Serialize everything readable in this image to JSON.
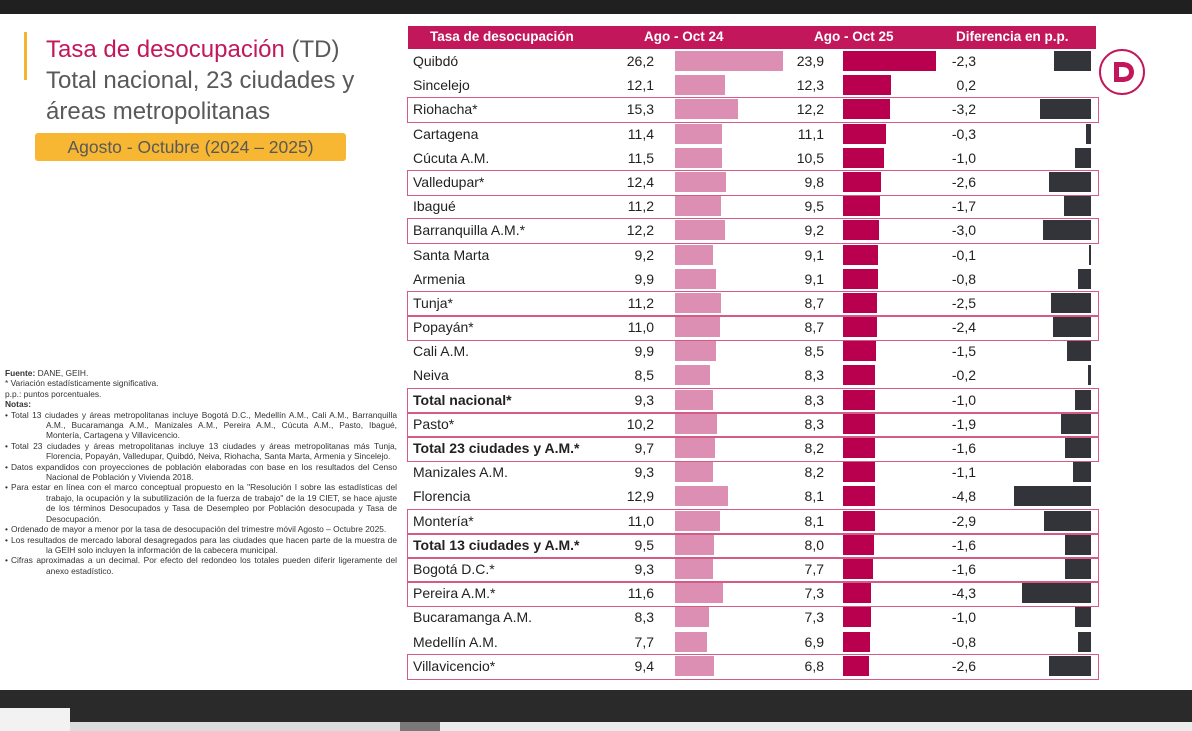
{
  "title": {
    "line1_colored": "Tasa de desocupación",
    "line1_rest": " (TD)",
    "line2": "Total nacional, 23 ciudades y",
    "line3": "áreas metropolitanas"
  },
  "period": "Agosto - Octubre (2024 – 2025)",
  "notes": {
    "fuente_label": "Fuente:",
    "fuente_text": " DANE, GEIH.",
    "asterisk": "* Variación estadísticamente significativa.",
    "pp": "p.p.: puntos porcentuales.",
    "notas_label": "Notas",
    "notas_colon": ":",
    "bullet": "•",
    "items": [
      "Total 13 ciudades y áreas metropolitanas incluye Bogotá D.C., Medellín A.M., Cali A.M., Barranquilla A.M., Bucaramanga A.M., Manizales A.M., Pereira A.M., Cúcuta A.M., Pasto, Ibagué, Montería, Cartagena y Villavicencio.",
      "Total 23 ciudades y áreas metropolitanas incluye 13 ciudades y áreas metropolitanas más Tunja, Florencia, Popayán, Valledupar, Quibdó, Neiva, Riohacha, Santa Marta, Armenia y Sincelejo.",
      "Datos expandidos con proyecciones de población elaboradas con base en los resultados del Censo Nacional de Población y Vivienda 2018.",
      "Para estar en línea con el marco conceptual propuesto en la \"Resolución I sobre las estadísticas del trabajo, la ocupación y la subutilización de la fuerza de trabajo\" de la 19 CIET, se hace ajuste de los términos Desocupados y Tasa de Desempleo por Población desocupada y Tasa de Desocupación.",
      "Ordenado de mayor a menor por la tasa de desocupación del trimestre móvil Agosto – Octubre 2025.",
      "Los resultados de mercado laboral desagregados para las ciudades que hacen parte de la muestra de la GEIH solo incluyen la información de la cabecera municipal.",
      "Cifras aproximadas a un decimal. Por efecto del redondeo los totales pueden diferir ligeramente del anexo estadístico."
    ]
  },
  "colors": {
    "accent": "#c2185b",
    "bar_2024": "#dc8fb2",
    "bar_2025": "#b8004f",
    "bar_diff": "#33333a",
    "highlight_border": "#d45b86",
    "period_bg": "#f7b733"
  },
  "logo_icon": "dane-logo-icon",
  "chart_data": {
    "type": "table",
    "title": "Tasa de desocupación (TD) Total nacional, 23 ciudades y áreas metropolitanas",
    "columns": [
      "Tasa de desocupación",
      "Ago - Oct 24",
      "Ago - Oct 25",
      "Diferencia en p.p."
    ],
    "bar_scale_max": 26.2,
    "diff_scale_max": 4.8,
    "rows": [
      {
        "name": "Quibdó",
        "v24": "26,2",
        "n24": 26.2,
        "v25": "23,9",
        "n25": 23.9,
        "diff": "-2,3",
        "nd": -2.3,
        "hl": false,
        "bold": false
      },
      {
        "name": "Sincelejo",
        "v24": "12,1",
        "n24": 12.1,
        "v25": "12,3",
        "n25": 12.3,
        "diff": "0,2",
        "nd": 0.2,
        "hl": false,
        "bold": false
      },
      {
        "name": "Riohacha*",
        "v24": "15,3",
        "n24": 15.3,
        "v25": "12,2",
        "n25": 12.2,
        "diff": "-3,2",
        "nd": -3.2,
        "hl": true,
        "bold": false
      },
      {
        "name": "Cartagena",
        "v24": "11,4",
        "n24": 11.4,
        "v25": "11,1",
        "n25": 11.1,
        "diff": "-0,3",
        "nd": -0.3,
        "hl": false,
        "bold": false
      },
      {
        "name": "Cúcuta A.M.",
        "v24": "11,5",
        "n24": 11.5,
        "v25": "10,5",
        "n25": 10.5,
        "diff": "-1,0",
        "nd": -1.0,
        "hl": false,
        "bold": false
      },
      {
        "name": "Valledupar*",
        "v24": "12,4",
        "n24": 12.4,
        "v25": "9,8",
        "n25": 9.8,
        "diff": "-2,6",
        "nd": -2.6,
        "hl": true,
        "bold": false
      },
      {
        "name": "Ibagué",
        "v24": "11,2",
        "n24": 11.2,
        "v25": "9,5",
        "n25": 9.5,
        "diff": "-1,7",
        "nd": -1.7,
        "hl": false,
        "bold": false
      },
      {
        "name": "Barranquilla A.M.*",
        "v24": "12,2",
        "n24": 12.2,
        "v25": "9,2",
        "n25": 9.2,
        "diff": "-3,0",
        "nd": -3.0,
        "hl": true,
        "bold": false
      },
      {
        "name": "Santa Marta",
        "v24": "9,2",
        "n24": 9.2,
        "v25": "9,1",
        "n25": 9.1,
        "diff": "-0,1",
        "nd": -0.1,
        "hl": false,
        "bold": false
      },
      {
        "name": "Armenia",
        "v24": "9,9",
        "n24": 9.9,
        "v25": "9,1",
        "n25": 9.1,
        "diff": "-0,8",
        "nd": -0.8,
        "hl": false,
        "bold": false
      },
      {
        "name": "Tunja*",
        "v24": "11,2",
        "n24": 11.2,
        "v25": "8,7",
        "n25": 8.7,
        "diff": "-2,5",
        "nd": -2.5,
        "hl": true,
        "bold": false
      },
      {
        "name": "Popayán*",
        "v24": "11,0",
        "n24": 11.0,
        "v25": "8,7",
        "n25": 8.7,
        "diff": "-2,4",
        "nd": -2.4,
        "hl": true,
        "bold": false
      },
      {
        "name": "Cali A.M.",
        "v24": "9,9",
        "n24": 9.9,
        "v25": "8,5",
        "n25": 8.5,
        "diff": "-1,5",
        "nd": -1.5,
        "hl": false,
        "bold": false
      },
      {
        "name": "Neiva",
        "v24": "8,5",
        "n24": 8.5,
        "v25": "8,3",
        "n25": 8.3,
        "diff": "-0,2",
        "nd": -0.2,
        "hl": false,
        "bold": false
      },
      {
        "name": "Total nacional*",
        "v24": "9,3",
        "n24": 9.3,
        "v25": "8,3",
        "n25": 8.3,
        "diff": "-1,0",
        "nd": -1.0,
        "hl": true,
        "bold": true
      },
      {
        "name": "Pasto*",
        "v24": "10,2",
        "n24": 10.2,
        "v25": "8,3",
        "n25": 8.3,
        "diff": "-1,9",
        "nd": -1.9,
        "hl": true,
        "bold": false
      },
      {
        "name": "Total 23 ciudades y A.M.*",
        "v24": "9,7",
        "n24": 9.7,
        "v25": "8,2",
        "n25": 8.2,
        "diff": "-1,6",
        "nd": -1.6,
        "hl": true,
        "bold": true
      },
      {
        "name": "Manizales A.M.",
        "v24": "9,3",
        "n24": 9.3,
        "v25": "8,2",
        "n25": 8.2,
        "diff": "-1,1",
        "nd": -1.1,
        "hl": false,
        "bold": false
      },
      {
        "name": "Florencia",
        "v24": "12,9",
        "n24": 12.9,
        "v25": "8,1",
        "n25": 8.1,
        "diff": "-4,8",
        "nd": -4.8,
        "hl": false,
        "bold": false
      },
      {
        "name": "Montería*",
        "v24": "11,0",
        "n24": 11.0,
        "v25": "8,1",
        "n25": 8.1,
        "diff": "-2,9",
        "nd": -2.9,
        "hl": true,
        "bold": false
      },
      {
        "name": "Total 13 ciudades y A.M.*",
        "v24": "9,5",
        "n24": 9.5,
        "v25": "8,0",
        "n25": 8.0,
        "diff": "-1,6",
        "nd": -1.6,
        "hl": true,
        "bold": true
      },
      {
        "name": "Bogotá D.C.*",
        "v24": "9,3",
        "n24": 9.3,
        "v25": "7,7",
        "n25": 7.7,
        "diff": "-1,6",
        "nd": -1.6,
        "hl": true,
        "bold": false
      },
      {
        "name": "Pereira A.M.*",
        "v24": "11,6",
        "n24": 11.6,
        "v25": "7,3",
        "n25": 7.3,
        "diff": "-4,3",
        "nd": -4.3,
        "hl": true,
        "bold": false
      },
      {
        "name": "Bucaramanga A.M.",
        "v24": "8,3",
        "n24": 8.3,
        "v25": "7,3",
        "n25": 7.3,
        "diff": "-1,0",
        "nd": -1.0,
        "hl": false,
        "bold": false
      },
      {
        "name": "Medellín A.M.",
        "v24": "7,7",
        "n24": 7.7,
        "v25": "6,9",
        "n25": 6.9,
        "diff": "-0,8",
        "nd": -0.8,
        "hl": false,
        "bold": false
      },
      {
        "name": "Villavicencio*",
        "v24": "9,4",
        "n24": 9.4,
        "v25": "6,8",
        "n25": 6.8,
        "diff": "-2,6",
        "nd": -2.6,
        "hl": true,
        "bold": false
      }
    ]
  }
}
